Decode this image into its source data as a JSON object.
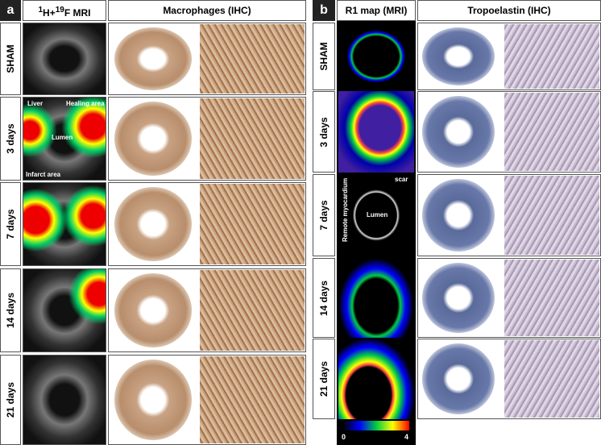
{
  "panel_a": {
    "label": "a",
    "header_mri": {
      "sup1": "1",
      "mid": "H+",
      "sup2": "19",
      "end": "F MRI"
    },
    "header_ihc": "Macrophages (IHC)",
    "rows": [
      "SHAM",
      "3 days",
      "7 days",
      "14 days",
      "21 days"
    ],
    "annotations": {
      "liver": "Liver",
      "healing": "Healing area",
      "lumen": "Lumen",
      "infarct": "Infarct area"
    }
  },
  "panel_b": {
    "label": "b",
    "header_mri": "R1 map (MRI)",
    "header_ihc": "Tropoelastin (IHC)",
    "rows": [
      "SHAM",
      "3 days",
      "7 days",
      "14 days",
      "21 days"
    ],
    "annotations": {
      "scar": "scar",
      "lumen": "Lumen",
      "remote": "Remote myocardium"
    },
    "colorbar": {
      "min": 0,
      "max": 4
    }
  }
}
